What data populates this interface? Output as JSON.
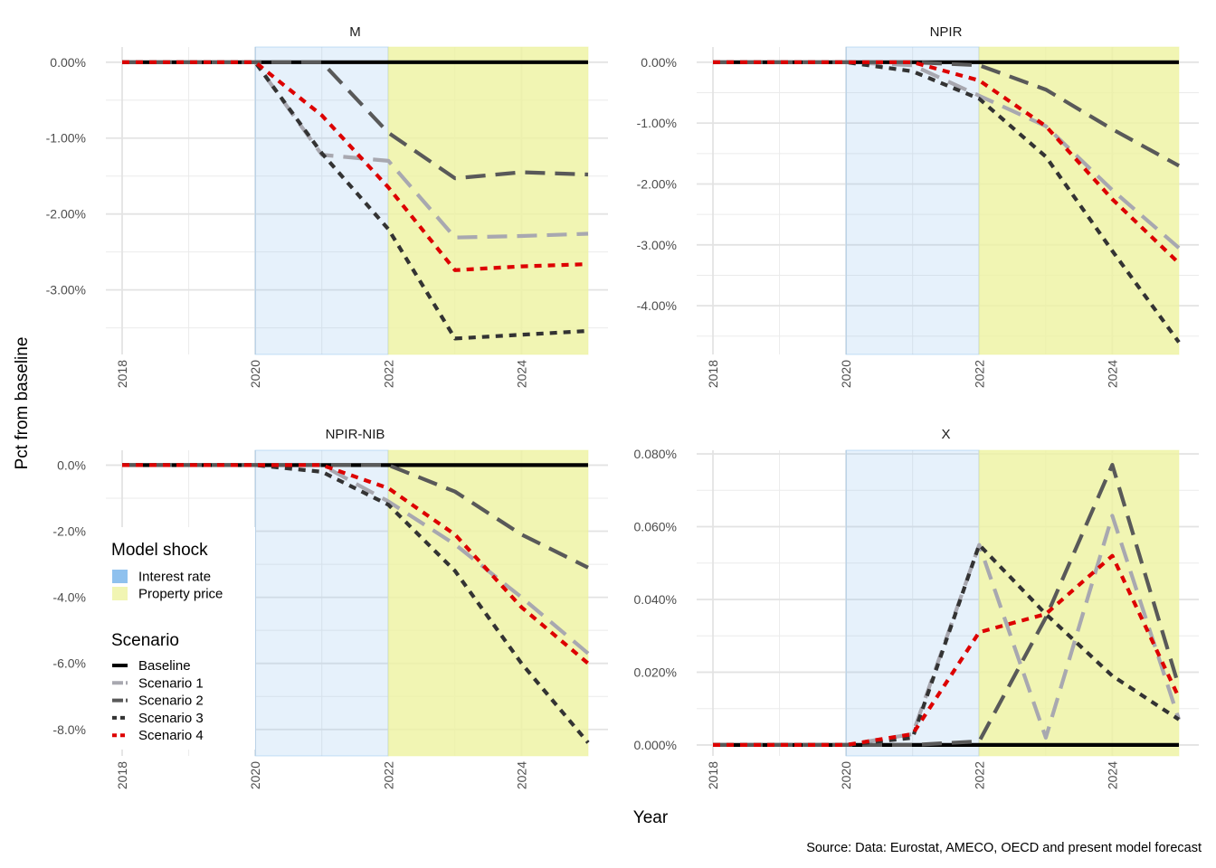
{
  "chart_data": {
    "type": "line",
    "y_axis_label": "Pct from baseline",
    "x_axis_label": "Year",
    "caption": "Source: Data: Eurostat, AMECO, OECD and present model forecast",
    "x_range": [
      2018,
      2025
    ],
    "x_ticks": [
      2018,
      2020,
      2022,
      2024
    ],
    "x_tick_labels": [
      "2018",
      "2020",
      "2022",
      "2024"
    ],
    "shock_periods": [
      {
        "name": "Interest rate",
        "from": 2020,
        "to": 2022,
        "color": "#8fc1ee"
      },
      {
        "name": "Property price",
        "from": 2022,
        "to": 2025,
        "color": "#eef2a0"
      }
    ],
    "legend": {
      "shock_title": "Model shock",
      "shock_items": [
        "Interest rate",
        "Property price"
      ],
      "scenario_title": "Scenario",
      "scenario_items": [
        "Baseline",
        "Scenario 1",
        "Scenario 2",
        "Scenario 3",
        "Scenario 4"
      ]
    },
    "scenario_styles": [
      {
        "name": "Baseline",
        "color": "#000000",
        "dash": "solid"
      },
      {
        "name": "Scenario 1",
        "color": "#a8a8b0",
        "dash": "longdash"
      },
      {
        "name": "Scenario 2",
        "color": "#595959",
        "dash": "longdash"
      },
      {
        "name": "Scenario 3",
        "color": "#333333",
        "dash": "dashed"
      },
      {
        "name": "Scenario 4",
        "color": "#dd0000",
        "dash": "dashed"
      }
    ],
    "x": [
      2018,
      2019,
      2020,
      2021,
      2022,
      2023,
      2024,
      2025
    ],
    "panels": [
      {
        "title": "M",
        "ylim": [
          -3.85,
          0.2
        ],
        "y_ticks": [
          0,
          -1,
          -2,
          -3
        ],
        "y_tick_labels": [
          "0.00%",
          "-1.00%",
          "-2.00%",
          "-3.00%"
        ],
        "series": [
          {
            "name": "Baseline",
            "values": [
              0,
              0,
              0,
              0,
              0,
              0,
              0,
              0
            ]
          },
          {
            "name": "Scenario 1",
            "values": [
              0,
              0,
              0,
              -1.22,
              -1.3,
              -2.31,
              -2.29,
              -2.26
            ]
          },
          {
            "name": "Scenario 2",
            "values": [
              0,
              0,
              0,
              0,
              -0.93,
              -1.53,
              -1.45,
              -1.48
            ]
          },
          {
            "name": "Scenario 3",
            "values": [
              0,
              0,
              0,
              -1.2,
              -2.2,
              -3.64,
              -3.59,
              -3.54
            ]
          },
          {
            "name": "Scenario 4",
            "values": [
              0,
              0,
              0,
              -0.7,
              -1.65,
              -2.74,
              -2.69,
              -2.66
            ]
          }
        ]
      },
      {
        "title": "NPIR",
        "ylim": [
          -4.8,
          0.25
        ],
        "y_ticks": [
          0,
          -1,
          -2,
          -3,
          -4
        ],
        "y_tick_labels": [
          "0.00%",
          "-1.00%",
          "-2.00%",
          "-3.00%",
          "-4.00%"
        ],
        "series": [
          {
            "name": "Baseline",
            "values": [
              0,
              0,
              0,
              0,
              0,
              0,
              0,
              0
            ]
          },
          {
            "name": "Scenario 1",
            "values": [
              0,
              0,
              0,
              -0.05,
              -0.55,
              -1.05,
              -2.1,
              -3.05
            ]
          },
          {
            "name": "Scenario 2",
            "values": [
              0,
              0,
              0,
              0,
              -0.05,
              -0.45,
              -1.1,
              -1.7
            ]
          },
          {
            "name": "Scenario 3",
            "values": [
              0,
              0,
              0,
              -0.15,
              -0.6,
              -1.55,
              -3.1,
              -4.6
            ]
          },
          {
            "name": "Scenario 4",
            "values": [
              0,
              0,
              0,
              0,
              -0.3,
              -1.05,
              -2.25,
              -3.3
            ]
          }
        ]
      },
      {
        "title": "NPIR-NIB",
        "ylim": [
          -8.8,
          0.45
        ],
        "y_ticks": [
          0,
          -2,
          -4,
          -6,
          -8
        ],
        "y_tick_labels": [
          "0.0%",
          "-2.0%",
          "-4.0%",
          "-6.0%",
          "-8.0%"
        ],
        "series": [
          {
            "name": "Baseline",
            "values": [
              0,
              0,
              0,
              0,
              0,
              0,
              0,
              0
            ]
          },
          {
            "name": "Scenario 1",
            "values": [
              0,
              0,
              0,
              0,
              -1.1,
              -2.4,
              -4.0,
              -5.7
            ]
          },
          {
            "name": "Scenario 2",
            "values": [
              0,
              0,
              0,
              0,
              0,
              -0.8,
              -2.1,
              -3.1
            ]
          },
          {
            "name": "Scenario 3",
            "values": [
              0,
              0,
              0,
              -0.2,
              -1.2,
              -3.2,
              -6.0,
              -8.4
            ]
          },
          {
            "name": "Scenario 4",
            "values": [
              0,
              0,
              0,
              0,
              -0.7,
              -2.1,
              -4.3,
              -6.0
            ]
          }
        ]
      },
      {
        "title": "X",
        "ylim": [
          -0.003,
          0.081
        ],
        "y_ticks": [
          0,
          0.02,
          0.04,
          0.06,
          0.08
        ],
        "y_tick_labels": [
          "0.000%",
          "0.020%",
          "0.040%",
          "0.060%",
          "0.080%"
        ],
        "series": [
          {
            "name": "Baseline",
            "values": [
              0,
              0,
              0,
              0,
              0,
              0,
              0,
              0
            ]
          },
          {
            "name": "Scenario 1",
            "values": [
              0,
              0,
              0,
              0.003,
              0.055,
              0.002,
              0.063,
              0.007
            ]
          },
          {
            "name": "Scenario 2",
            "values": [
              0,
              0,
              0,
              0,
              0.001,
              0.035,
              0.077,
              0.016
            ]
          },
          {
            "name": "Scenario 3",
            "values": [
              0,
              0,
              0,
              0.002,
              0.055,
              0.036,
              0.019,
              0.007
            ]
          },
          {
            "name": "Scenario 4",
            "values": [
              0,
              0,
              0,
              0.003,
              0.031,
              0.036,
              0.052,
              0.013
            ]
          }
        ]
      }
    ]
  }
}
